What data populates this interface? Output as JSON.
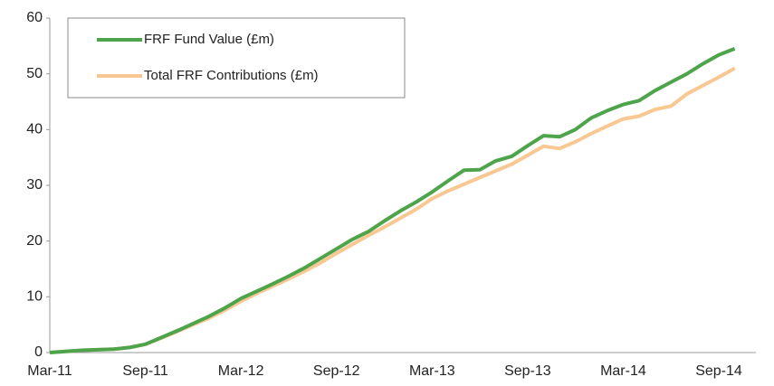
{
  "chart_data": {
    "type": "line",
    "categories": [
      "Mar-11",
      null,
      null,
      null,
      null,
      null,
      "Sep-11",
      null,
      null,
      null,
      null,
      null,
      "Mar-12",
      null,
      null,
      null,
      null,
      null,
      "Sep-12",
      null,
      null,
      null,
      null,
      null,
      "Mar-13",
      null,
      null,
      null,
      null,
      null,
      "Sep-13",
      null,
      null,
      null,
      null,
      null,
      "Mar-14",
      null,
      null,
      null,
      null,
      null,
      "Sep-14",
      null
    ],
    "series": [
      {
        "name": "FRF Fund Value (£m)",
        "color": "#4ea44a",
        "values": [
          0,
          0.2,
          0.4,
          0.5,
          0.6,
          0.9,
          1.5,
          2.7,
          3.9,
          5.2,
          6.5,
          8.0,
          9.7,
          11.0,
          12.3,
          13.7,
          15.2,
          16.9,
          18.6,
          20.3,
          21.7,
          23.6,
          25.4,
          27.0,
          28.8,
          30.8,
          32.7,
          32.8,
          34.4,
          35.2,
          37.1,
          38.9,
          38.7,
          40.0,
          42.1,
          43.4,
          44.5,
          45.2,
          47.0,
          48.5,
          50.0,
          51.8,
          53.4,
          54.5
        ]
      },
      {
        "name": "Total FRF Contributions (£m)",
        "color": "#f9c892",
        "values": [
          0,
          0.2,
          0.4,
          0.5,
          0.6,
          0.9,
          1.5,
          2.6,
          3.8,
          5.0,
          6.2,
          7.6,
          9.2,
          10.6,
          11.9,
          13.2,
          14.6,
          16.1,
          17.8,
          19.4,
          21.0,
          22.5,
          24.1,
          25.7,
          27.6,
          29.0,
          30.2,
          31.4,
          32.6,
          33.8,
          35.4,
          37.0,
          36.6,
          37.8,
          39.3,
          40.6,
          41.9,
          42.4,
          43.6,
          44.2,
          46.4,
          47.9,
          49.4,
          51.0
        ]
      }
    ],
    "ylim": [
      0,
      60
    ],
    "yticks": [
      0,
      10,
      20,
      30,
      40,
      50,
      60
    ],
    "grid": false,
    "legend": "top-left"
  }
}
